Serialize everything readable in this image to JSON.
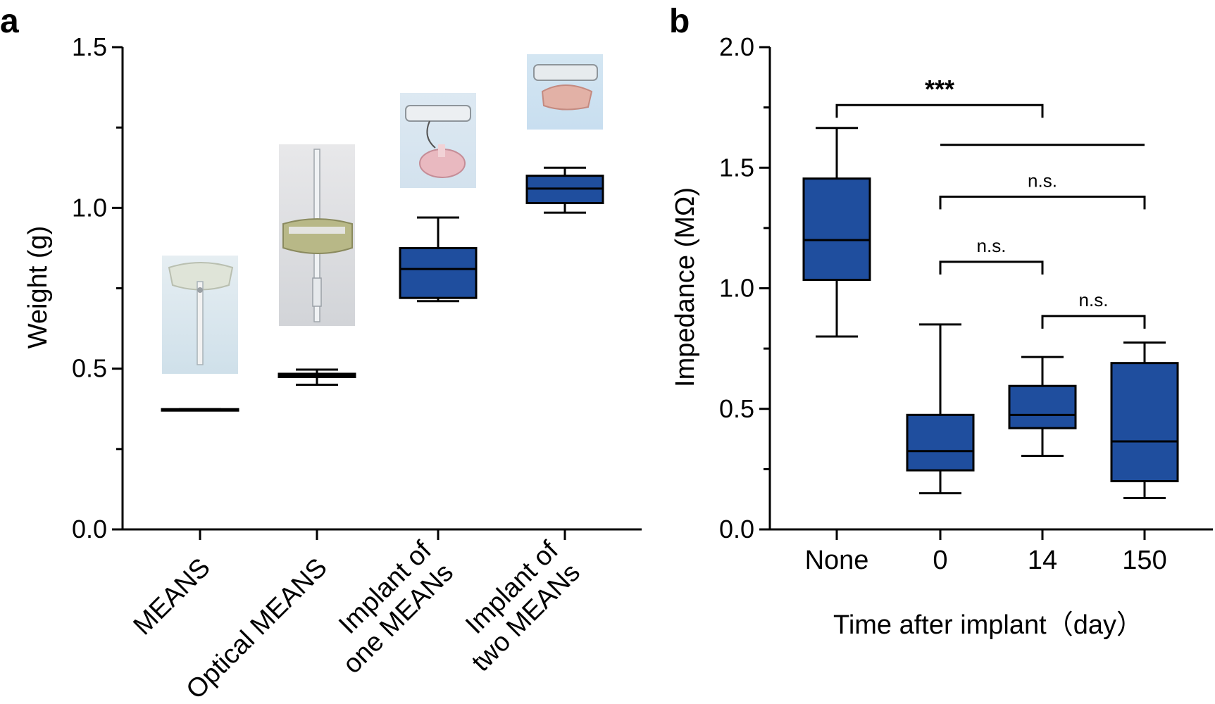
{
  "colors": {
    "box_fill": "#1f4e9e",
    "stroke": "#000000",
    "background": "#ffffff"
  },
  "chart_data": [
    {
      "panel": "a",
      "type": "box",
      "title": "",
      "xlabel": "",
      "ylabel": "Weight (g)",
      "ylim": [
        0.0,
        1.5
      ],
      "yticks": [
        "0.0",
        "0.5",
        "1.0",
        "1.5"
      ],
      "ytick_values": [
        0.0,
        0.5,
        1.0,
        1.5
      ],
      "minor_ticks": [
        0.25,
        0.75,
        1.25
      ],
      "categories": [
        {
          "lines": [
            "MEANS"
          ]
        },
        {
          "lines": [
            "Optical MEANS"
          ]
        },
        {
          "lines": [
            "Implant of",
            "one MEANs"
          ]
        },
        {
          "lines": [
            "Implant of",
            "two MEANs"
          ]
        }
      ],
      "boxes": [
        {
          "min": 0.37,
          "q1": 0.37,
          "median": 0.372,
          "q3": 0.374,
          "max": 0.374
        },
        {
          "min": 0.45,
          "q1": 0.474,
          "median": 0.478,
          "q3": 0.484,
          "max": 0.497
        },
        {
          "min": 0.71,
          "q1": 0.72,
          "median": 0.81,
          "q3": 0.875,
          "max": 0.97
        },
        {
          "min": 0.985,
          "q1": 1.015,
          "median": 1.06,
          "q3": 1.1,
          "max": 1.125
        }
      ],
      "photos": [
        {
          "name": "means-device-photo",
          "category": 0
        },
        {
          "name": "optical-means-device-photo",
          "category": 1
        },
        {
          "name": "one-means-implant-photo",
          "category": 2
        },
        {
          "name": "two-means-implant-photo",
          "category": 3
        }
      ]
    },
    {
      "panel": "b",
      "type": "box",
      "title": "",
      "xlabel": "Time after implant（day）",
      "ylabel": "Impedance (MΩ)",
      "ylim": [
        0.0,
        2.0
      ],
      "yticks": [
        "0.0",
        "0.5",
        "1.0",
        "1.5",
        "2.0"
      ],
      "ytick_values": [
        0.0,
        0.5,
        1.0,
        1.5,
        2.0
      ],
      "minor_ticks": [
        0.25,
        0.75,
        1.25,
        1.75
      ],
      "categories": [
        "None",
        "0",
        "14",
        "150"
      ],
      "boxes": [
        {
          "min": 0.8,
          "q1": 1.035,
          "median": 1.2,
          "q3": 1.455,
          "max": 1.665
        },
        {
          "min": 0.15,
          "q1": 0.245,
          "median": 0.325,
          "q3": 0.475,
          "max": 0.85
        },
        {
          "min": 0.305,
          "q1": 0.42,
          "median": 0.475,
          "q3": 0.595,
          "max": 0.715
        },
        {
          "min": 0.13,
          "q1": 0.2,
          "median": 0.365,
          "q3": 0.69,
          "max": 0.775
        }
      ],
      "significance": [
        {
          "from": 0,
          "to": 2,
          "y": 1.76,
          "label": "***",
          "ticks": true
        },
        {
          "from": 1,
          "to": 3,
          "y": 1.595,
          "label": "",
          "ticks": false
        },
        {
          "from": 1,
          "to": 3,
          "y": 1.38,
          "label": "n.s.",
          "ticks": true
        },
        {
          "from": 1,
          "to": 2,
          "y": 1.11,
          "label": "n.s.",
          "ticks": true
        },
        {
          "from": 2,
          "to": 3,
          "y": 0.885,
          "label": "n.s.",
          "ticks": true
        }
      ]
    }
  ]
}
